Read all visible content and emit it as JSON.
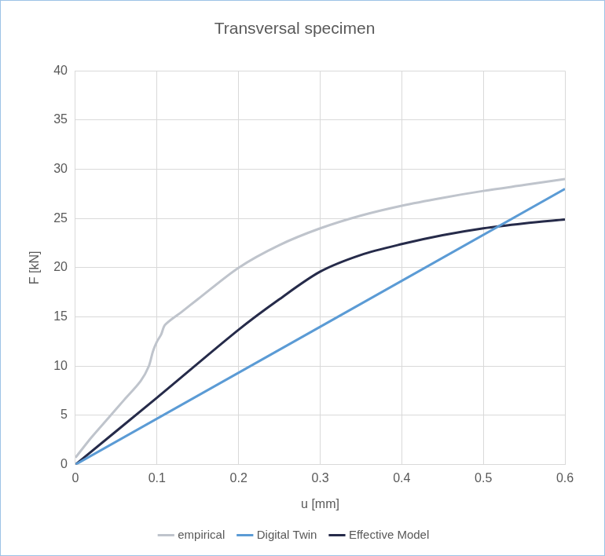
{
  "chart_data": {
    "type": "line",
    "title": "Transversal specimen",
    "x_label": "u [mm]",
    "y_label": "F [kN]",
    "xlim": [
      0,
      0.6
    ],
    "xticks": [
      0,
      0.1,
      0.2,
      0.3,
      0.4,
      0.5,
      0.6
    ],
    "ylim": [
      0,
      40
    ],
    "yticks": [
      0,
      5,
      10,
      15,
      20,
      25,
      30,
      35,
      40
    ],
    "grid": true,
    "legend": "bottom",
    "marker": "none",
    "series": [
      {
        "name": "empirical",
        "color": "#bfc4cc",
        "x": [
          0,
          0.02,
          0.04,
          0.06,
          0.08,
          0.09,
          0.095,
          0.1,
          0.105,
          0.11,
          0.13,
          0.15,
          0.2,
          0.25,
          0.3,
          0.35,
          0.4,
          0.45,
          0.5,
          0.55,
          0.6
        ],
        "values": [
          0.7,
          2.8,
          4.7,
          6.6,
          8.5,
          10,
          11.5,
          12.5,
          13.2,
          14.2,
          15.5,
          16.8,
          20,
          22.3,
          24,
          25.3,
          26.3,
          27.1,
          27.8,
          28.4,
          29
        ]
      },
      {
        "name": "Digital Twin",
        "color": "#5b9bd5",
        "x": [
          0,
          0.6
        ],
        "values": [
          0,
          28
        ]
      },
      {
        "name": "Effective Model",
        "color": "#262b4a",
        "x": [
          0,
          0.1,
          0.2,
          0.25,
          0.3,
          0.35,
          0.4,
          0.45,
          0.5,
          0.55,
          0.6
        ],
        "values": [
          0,
          6.8,
          13.7,
          16.8,
          19.6,
          21.3,
          22.4,
          23.3,
          24,
          24.5,
          24.9
        ]
      }
    ]
  }
}
